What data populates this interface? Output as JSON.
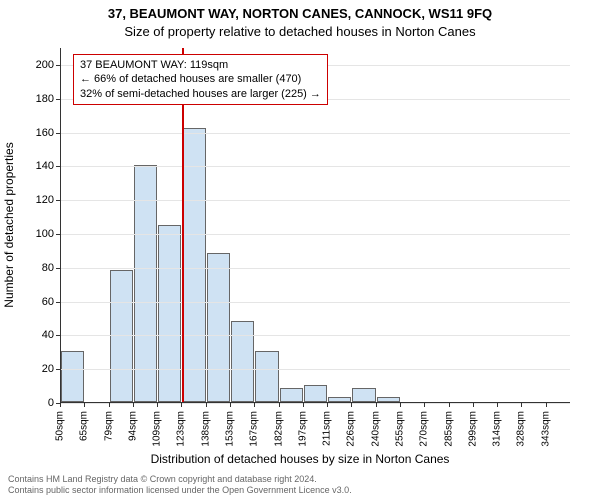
{
  "titles": {
    "line1": "37, BEAUMONT WAY, NORTON CANES, CANNOCK, WS11 9FQ",
    "line2": "Size of property relative to detached houses in Norton Canes"
  },
  "axes": {
    "ylabel": "Number of detached properties",
    "xlabel": "Distribution of detached houses by size in Norton Canes",
    "ylim_max": 210,
    "yticks": [
      0,
      20,
      40,
      60,
      80,
      100,
      120,
      140,
      160,
      180,
      200
    ],
    "xticks": [
      "50sqm",
      "65sqm",
      "79sqm",
      "94sqm",
      "109sqm",
      "123sqm",
      "138sqm",
      "153sqm",
      "167sqm",
      "182sqm",
      "197sqm",
      "211sqm",
      "226sqm",
      "240sqm",
      "255sqm",
      "270sqm",
      "285sqm",
      "299sqm",
      "314sqm",
      "328sqm",
      "343sqm"
    ]
  },
  "chart": {
    "type": "histogram",
    "n_bins": 21,
    "values": [
      30,
      0,
      78,
      140,
      105,
      162,
      88,
      48,
      30,
      8,
      10,
      3,
      8,
      3,
      0,
      0,
      0,
      0,
      0,
      0,
      0
    ],
    "bar_fill": "#cfe2f3",
    "bar_edge": "#666666",
    "background": "#ffffff",
    "grid_color": "#e5e5e5",
    "vline_color": "#cc0000",
    "vline_bin_index": 5,
    "annot_border": "#cc0000"
  },
  "annotation": {
    "line1": "37 BEAUMONT WAY: 119sqm",
    "line2": "← 66% of detached houses are smaller (470)",
    "line3": "32% of semi-detached houses are larger (225) →"
  },
  "footer": {
    "line1": "Contains HM Land Registry data © Crown copyright and database right 2024.",
    "line2": "Contains public sector information licensed under the Open Government Licence v3.0."
  }
}
